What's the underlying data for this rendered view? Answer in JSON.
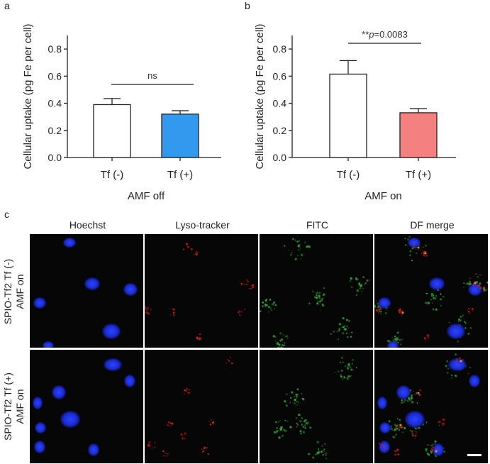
{
  "panel_labels": {
    "a": "a",
    "b": "b",
    "c": "c"
  },
  "chart_data": [
    {
      "type": "bar",
      "panel": "a",
      "title": "",
      "categories": [
        "Tf (-)",
        "Tf (+)"
      ],
      "values": [
        0.39,
        0.32
      ],
      "errors": [
        0.045,
        0.025
      ],
      "colors": [
        "#ffffff",
        "#3399ee"
      ],
      "xlabel": "AMF off",
      "ylabel": "Cellular uptake (pg Fe per cell)",
      "ylim": [
        0,
        0.9
      ],
      "yticks": [
        "0.0",
        "0.2",
        "0.4",
        "0.6",
        "0.8"
      ],
      "annotation": "ns"
    },
    {
      "type": "bar",
      "panel": "b",
      "title": "",
      "categories": [
        "Tf (-)",
        "Tf (+)"
      ],
      "values": [
        0.615,
        0.33
      ],
      "errors": [
        0.1,
        0.03
      ],
      "colors": [
        "#ffffff",
        "#f48080"
      ],
      "xlabel": "AMF on",
      "ylabel": "Cellular uptake (pg Fe per cell)",
      "ylim": [
        0,
        0.9
      ],
      "yticks": [
        "0.0",
        "0.2",
        "0.4",
        "0.6",
        "0.8"
      ],
      "annotation_prefix": "**",
      "annotation_p": "p",
      "annotation_value": "=0.0083"
    }
  ],
  "micrograph": {
    "columns": [
      "Hoechst",
      "Lyso-tracker",
      "FITC",
      "DF merge"
    ],
    "rows": [
      {
        "line1": "SPIO-Tf2 Tf (-)",
        "line2": "AMF on"
      },
      {
        "line1": "SPIO-Tf2 Tf (+)",
        "line2": "AMF on"
      }
    ],
    "channel_colors": {
      "nucleus": "#1a2fd8",
      "lyso": "#e01818",
      "fitc": "#2fb82f"
    }
  }
}
